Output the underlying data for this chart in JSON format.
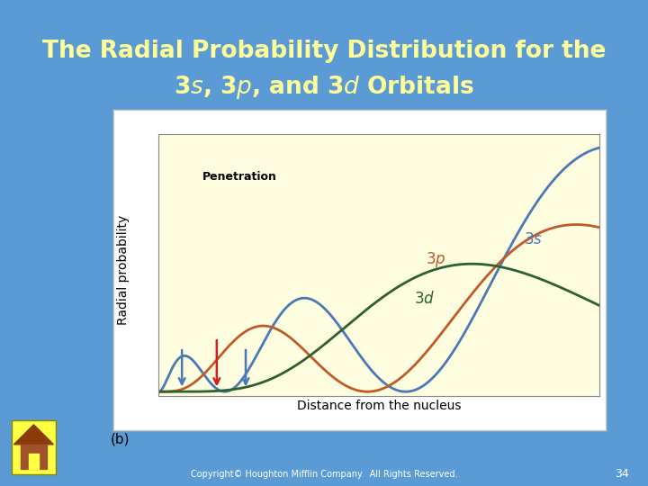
{
  "bg_color": "#5b9bd5",
  "title_line1": "The Radial Probability Distribution for the",
  "title_line2": "3$s$, 3$p$, and 3$d$ Orbitals",
  "title_color": "#ffff99",
  "title_fontsize": 19,
  "plot_bg": "#fffde0",
  "plot_frame_color": "#aaaaaa",
  "xlabel": "Distance from the nucleus",
  "ylabel": "Radial probability",
  "color_3s": "#4a7ab5",
  "color_3p": "#c05a28",
  "color_3d": "#2d6030",
  "label_3s": "$3s$",
  "label_3p": "$3p$",
  "label_3d": "$3d$",
  "penetration_label": "Penetration",
  "sub_label": "(b)",
  "copyright": "Copyright© Houghton Mifflin Company.  All Rights Reserved.",
  "page_num": "34",
  "arrow_color_blue": "#4a7ab5",
  "arrow_color_red": "#cc2222",
  "home_bg": "#ffff44",
  "home_roof": "#8b3a0a",
  "home_wall": "#a0522d"
}
